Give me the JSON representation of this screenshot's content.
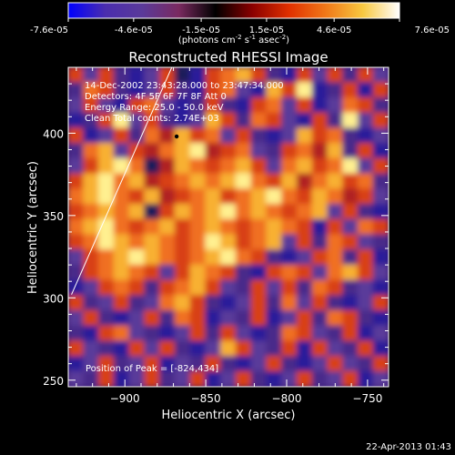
{
  "chart_data": {
    "type": "heatmap",
    "title": "Reconstructed RHESSI Image",
    "xlabel": "Heliocentric X (arcsec)",
    "ylabel": "Heliocentric Y (arcsec)",
    "xlim": [
      -935,
      -737
    ],
    "ylim": [
      246,
      440
    ],
    "xticks": [
      -900,
      -850,
      -800,
      -750
    ],
    "yticks": [
      250,
      300,
      350,
      400
    ],
    "colorbar": {
      "ticks": [
        -7.6e-05,
        -4.6e-05,
        -1.5e-05,
        1.5e-05,
        4.6e-05,
        7.6e-05
      ],
      "tick_labels": [
        "-7.6e-05",
        "-4.6e-05",
        "-1.5e-05",
        "1.5e-05",
        "4.6e-05",
        "7.6e-05"
      ],
      "range": [
        -7.6e-05,
        7.6e-05
      ],
      "label_main": "(photons cm",
      "label_sup1": "-2",
      "label_mid": " s",
      "label_sup2": "-1",
      "label_end": " asec",
      "label_sup3": "-2",
      "label_close": ")"
    },
    "info": {
      "time": "14-Dec-2002 23:43:28.000 to 23:47:34.000",
      "detectors": "Detectors: 4F 5F 6F 7F 8F  Att 0",
      "energy": "Energy Range: 25.0 - 50.0 keV",
      "clean": "Clean    Total counts: 2.74E+03"
    },
    "peak_label": "Position of Peak = [-824,434]",
    "peak": [
      -824,
      434
    ],
    "marker": [
      -868,
      398
    ],
    "limb_line": [
      [
        -933,
        302
      ],
      [
        -871,
        440
      ]
    ],
    "grid": [
      "FCFBACFDAFGHFBAFCFBFC",
      "BGFBACFBAFGCAHFIABFAF",
      "CFCAFGCABFBAFGCFACGFB",
      "ABFICFBACHFBGFCAFBICF",
      "FACFBGEHFGCFBACHFGBAC",
      "BGHCFEGHIEFGCBFGEHBFA",
      "CFHIGDEHGFGHFCGHFGICF",
      "FHIGHEFGHGHIGFHEGHFGB",
      "GHIGFHEFGHFGHIGFHGEFC",
      "FGHGHDFHGHIGHGFGHCFBA",
      "GHIGFGHFGHGFGHGFAFCGF",
      "FGIHGHGFGIHFGHCFBGFCB",
      "CFGHIHGFGHIGFBACFGBFA",
      "BFGHGFCFHGFBAFGFCGHFC",
      "ACFGFBFGHFCBFCFBGFBCA",
      "FBCFBCGHFBACFBGCFBACF",
      "CFBACFBGFACBFACFBGFBA",
      "BAFGCBACFBFCABGFCBFAC",
      "FCBAFCFBACHFCBFAFCBFA",
      "ACFBCFACBFBACFBACFCBF",
      "CBFACFBCFACFBACFBCFAC"
    ],
    "palette": {
      "A": "#2a1a9a",
      "B": "#4a2a8a",
      "C": "#5a3a9a",
      "D": "#1a1a5a",
      "E": "#b02020",
      "F": "#d84018",
      "G": "#f07020",
      "H": "#f8b030",
      "I": "#fff090"
    },
    "colormap": [
      "#0000ff",
      "#4a2dae",
      "#5a3a9a",
      "#7a2a60",
      "#000000",
      "#8a0000",
      "#e03000",
      "#f07818",
      "#f8c840",
      "#ffffff"
    ]
  },
  "footer": {
    "date": "22-Apr-2013 01:43"
  }
}
